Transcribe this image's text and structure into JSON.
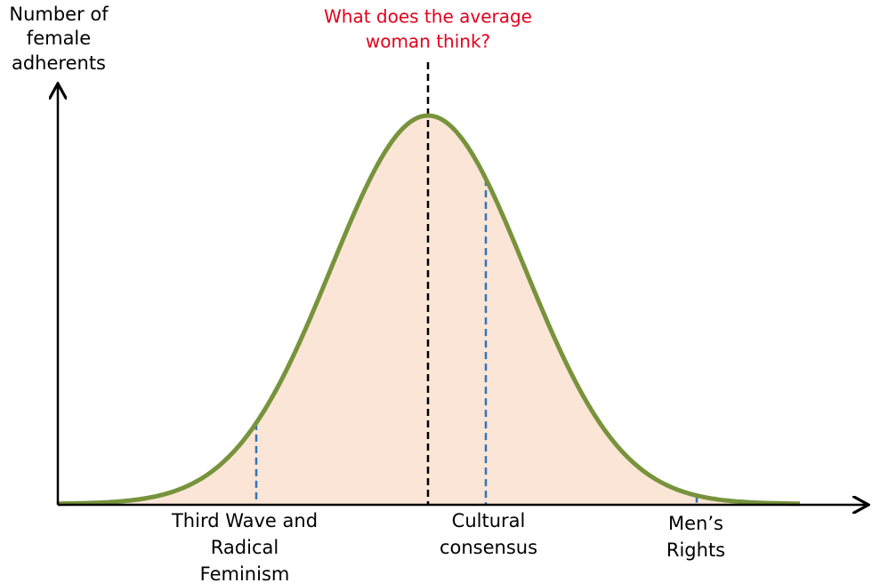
{
  "y_axis_label": [
    "Number of",
    "female",
    "adherents"
  ],
  "question": [
    "What does  the average",
    "woman think?"
  ],
  "labels": [
    {
      "lines": [
        "Third Wave and",
        "Radical",
        "Feminism"
      ]
    },
    {
      "lines": [
        "Cultural",
        "consensus"
      ]
    },
    {
      "lines": [
        "Men’s",
        "Rights"
      ]
    }
  ]
}
